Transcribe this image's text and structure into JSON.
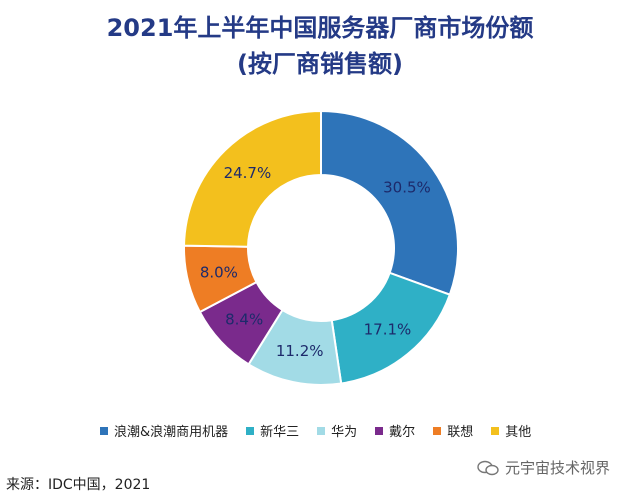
{
  "title_line1": "2021年上半年中国服务器厂商市场份额",
  "title_line2": "(按厂商销售额)",
  "chart_data": {
    "type": "pie",
    "title": "2021年上半年中国服务器厂商市场份额",
    "subtitle": "(按厂商销售额)",
    "legend_position": "bottom",
    "categories": [
      "浪潮&浪潮商用机器",
      "新华三",
      "华为",
      "戴尔",
      "联想",
      "其他"
    ],
    "values": [
      30.5,
      17.1,
      11.2,
      8.4,
      8.0,
      24.7
    ],
    "labels": [
      "30.5%",
      "17.1%",
      "11.2%",
      "8.4%",
      "8.0%",
      "24.7%"
    ],
    "colors": [
      "#2e74b9",
      "#2fb0c6",
      "#a2dbe6",
      "#7a2a8c",
      "#ee7d24",
      "#f3c01d"
    ]
  },
  "source": "来源：IDC中国，2021",
  "watermark": "元宇宙技术视界"
}
